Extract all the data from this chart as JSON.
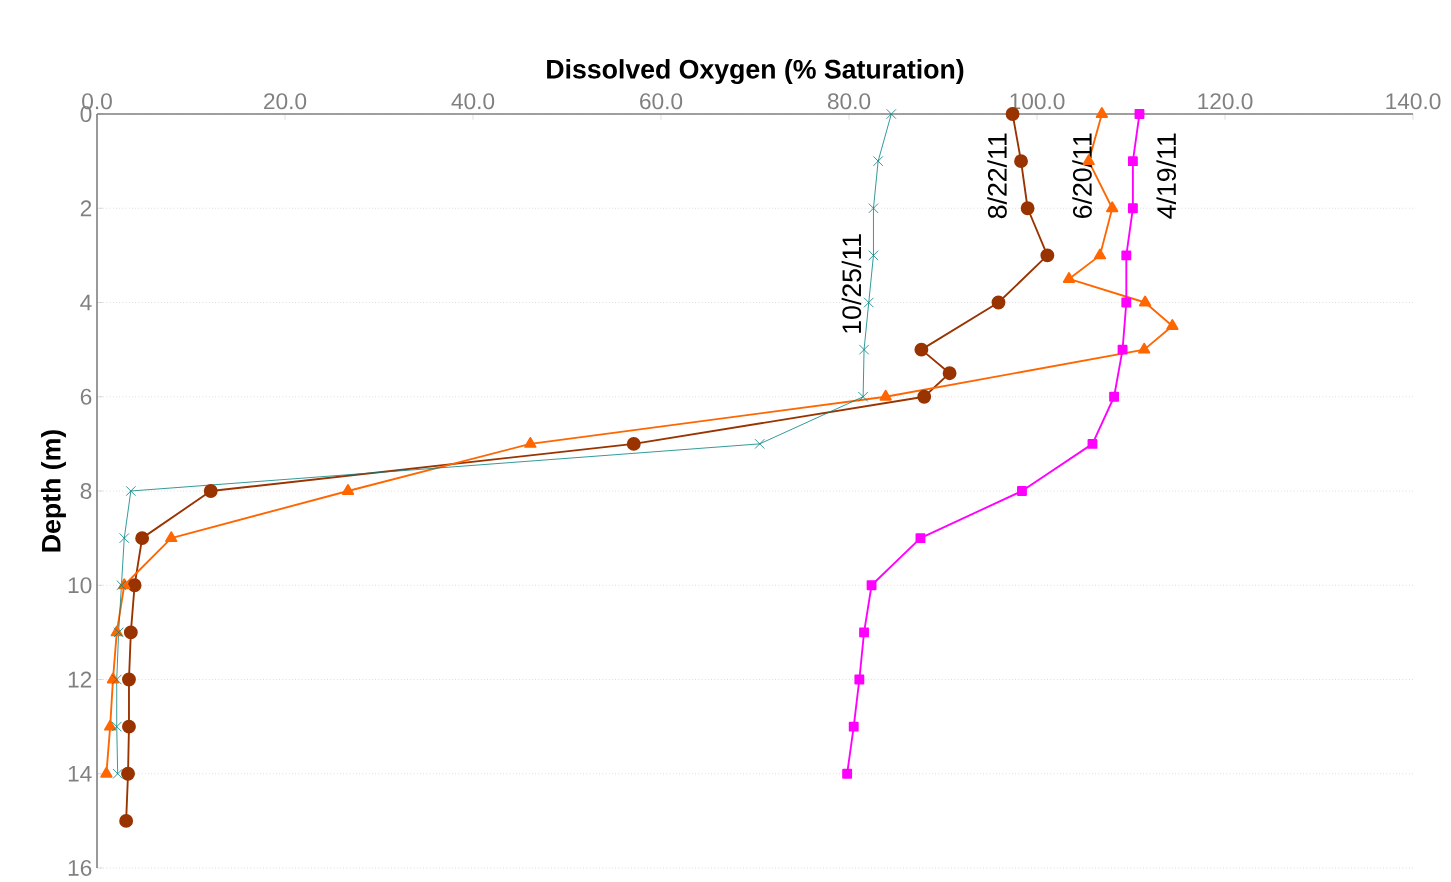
{
  "chart_data": {
    "type": "line",
    "xlabel": "Dissolved Oxygen (% Saturation)",
    "ylabel": "Depth (m)",
    "xlim": [
      0,
      140
    ],
    "ylim": [
      16,
      0
    ],
    "xticks": [
      {
        "value": 0,
        "label": "0.0"
      },
      {
        "value": 20,
        "label": "20.0"
      },
      {
        "value": 40,
        "label": "40.0"
      },
      {
        "value": 60,
        "label": "60.0"
      },
      {
        "value": 80,
        "label": "80.0"
      },
      {
        "value": 100,
        "label": "100.0"
      },
      {
        "value": 120,
        "label": "120.0"
      },
      {
        "value": 140,
        "label": "140.0"
      }
    ],
    "yticks": [
      0,
      2,
      4,
      6,
      8,
      10,
      12,
      14,
      16
    ],
    "grid": "y",
    "series": [
      {
        "name": "10/25/11",
        "color": "#008080",
        "marker": "cross",
        "x": [
          84.5,
          83.1,
          82.6,
          82.6,
          82.1,
          81.6,
          81.5,
          70.5,
          3.6,
          2.9,
          2.6,
          2.3,
          2.1,
          2.1,
          2.2
        ],
        "values": [
          0,
          1,
          2,
          3,
          4,
          5,
          6,
          7,
          8,
          9,
          10,
          11,
          12,
          13,
          14
        ]
      },
      {
        "name": "8/22/11",
        "color": "#993300",
        "marker": "circle",
        "x": [
          97.4,
          98.3,
          99.0,
          101.1,
          95.9,
          87.7,
          90.7,
          88.0,
          57.1,
          12.1,
          4.8,
          4.0,
          3.6,
          3.4,
          3.4,
          3.3,
          3.1
        ],
        "values": [
          0,
          1,
          2,
          3,
          4,
          5,
          5.5,
          6,
          7,
          8,
          9,
          10,
          11,
          12,
          13,
          14,
          15
        ]
      },
      {
        "name": "6/20/11",
        "color": "#ff6600",
        "marker": "triangle",
        "x": [
          106.9,
          105.5,
          108.0,
          106.7,
          103.4,
          111.5,
          114.4,
          111.4,
          83.9,
          46.1,
          26.7,
          7.9,
          2.9,
          2.1,
          1.7,
          1.4,
          1.0
        ],
        "values": [
          0,
          1,
          2,
          3,
          3.5,
          4,
          4.5,
          5,
          6,
          7,
          8,
          9,
          10,
          11,
          12,
          13,
          14
        ]
      },
      {
        "name": "4/19/11",
        "color": "#ff00ff",
        "marker": "square",
        "x": [
          110.9,
          110.2,
          110.2,
          109.5,
          109.5,
          109.1,
          108.2,
          105.9,
          98.4,
          87.6,
          82.4,
          81.6,
          81.1,
          80.5,
          79.8
        ],
        "values": [
          0,
          1,
          2,
          3,
          4,
          5,
          6,
          7,
          8,
          9,
          10,
          11,
          12,
          13,
          14
        ]
      }
    ]
  }
}
